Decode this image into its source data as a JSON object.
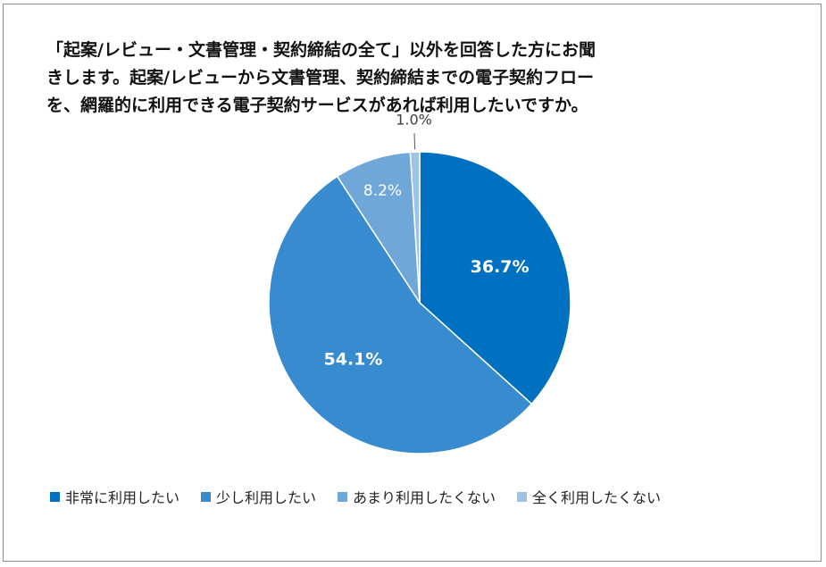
{
  "chart_data": {
    "type": "pie",
    "title": "「起案/レビュー・文書管理・契約締結の全て」以外を回答した方にお聞\nきします。起案/レビューから文書管理、契約締結までの電子契約フロー\nを、網羅的に利用できる電子契約サービスがあれば利用したいですか。",
    "categories": [
      "非常に利用したい",
      "少し利用したい",
      "あまり利用したくない",
      "全く利用したくない"
    ],
    "values": [
      36.7,
      54.1,
      8.2,
      1.0
    ],
    "data_labels": [
      "36.7%",
      "54.1%",
      "8.2%",
      "1.0%"
    ],
    "colors": [
      "#0070c0",
      "#388bce",
      "#6fa7d9",
      "#9dc3e6"
    ],
    "legend_position": "bottom",
    "start_angle_deg": 0,
    "direction": "clockwise"
  }
}
